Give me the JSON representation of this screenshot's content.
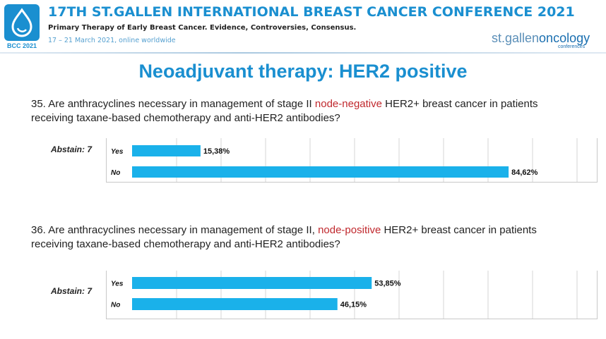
{
  "header": {
    "logo_year": "BCC 2021",
    "conference_title": "17TH ST.GALLEN INTERNATIONAL BREAST CANCER CONFERENCE 2021",
    "subtitle": "Primary Therapy of Early Breast Cancer. Evidence, Controversies, Consensus.",
    "dates": "17 – 21 March 2021, online worldwide",
    "brand_prefix": "st.gallen",
    "brand_main": "oncology",
    "brand_small": "conferences"
  },
  "slide_title": "Neoadjuvant therapy: HER2 positive",
  "questions": [
    {
      "pre": "35. Are anthracyclines necessary in management of stage II ",
      "highlight": "node-negative",
      "post": " HER2+ breast cancer in patients receiving taxane-based chemotherapy and anti-HER2 antibodies?",
      "abstain": "Abstain: 7"
    },
    {
      "pre": "36. Are anthracyclines necessary in management of stage II, ",
      "highlight": "node-positive",
      "post": " HER2+ breast cancer in patients receiving taxane-based chemotherapy and anti-HER2 antibodies?",
      "abstain": "Abstain: 7"
    }
  ],
  "colors": {
    "bar": "#1ab1ea",
    "accent": "#1a8fd0",
    "highlight": "#c0282d"
  },
  "chart_data": [
    {
      "type": "bar",
      "orientation": "horizontal",
      "categories": [
        "Yes",
        "No"
      ],
      "values": [
        15.38,
        84.62
      ],
      "value_labels": [
        "15,38%",
        "84,62%"
      ],
      "xlim": [
        0,
        100
      ],
      "grid": true
    },
    {
      "type": "bar",
      "orientation": "horizontal",
      "categories": [
        "Yes",
        "No"
      ],
      "values": [
        53.85,
        46.15
      ],
      "value_labels": [
        "53,85%",
        "46,15%"
      ],
      "xlim": [
        0,
        100
      ],
      "grid": true
    }
  ]
}
